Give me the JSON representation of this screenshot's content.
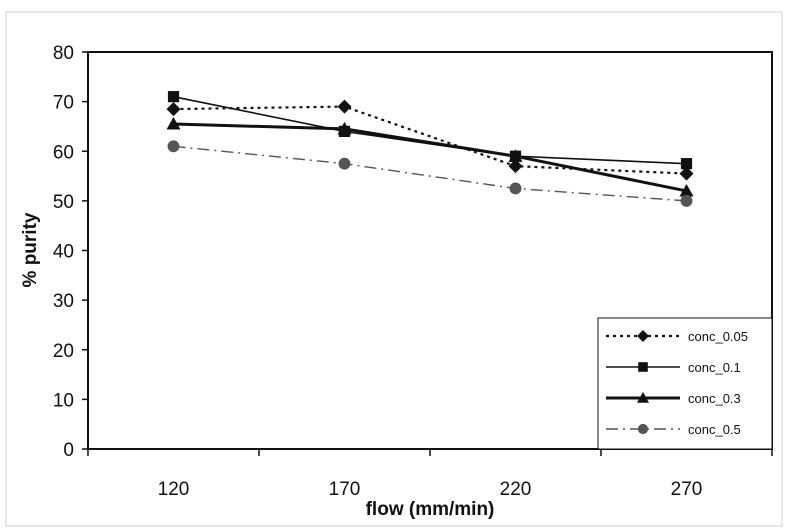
{
  "chart_data": {
    "type": "line",
    "xlabel": "flow (mm/min)",
    "ylabel": "% purity",
    "categories": [
      "120",
      "170",
      "220",
      "270"
    ],
    "ylim": [
      0,
      80
    ],
    "yticks": [
      0,
      10,
      20,
      30,
      40,
      50,
      60,
      70,
      80
    ],
    "grid": false,
    "legend_position": "bottom-right",
    "series": [
      {
        "name": "conc_0.05",
        "values": [
          68.5,
          69,
          57,
          55.5
        ],
        "line": "dotted",
        "marker": "diamond",
        "color": "#111111"
      },
      {
        "name": "conc_0.1",
        "values": [
          71,
          64,
          59,
          57.5
        ],
        "line": "solid",
        "marker": "square",
        "color": "#111111"
      },
      {
        "name": "conc_0.3",
        "values": [
          65.5,
          64.5,
          59,
          52
        ],
        "line": "solid-thick",
        "marker": "triangle",
        "color": "#111111"
      },
      {
        "name": "conc_0.5",
        "values": [
          61,
          57.5,
          52.5,
          50
        ],
        "line": "dashdot",
        "marker": "circle",
        "color": "#555555"
      }
    ]
  }
}
